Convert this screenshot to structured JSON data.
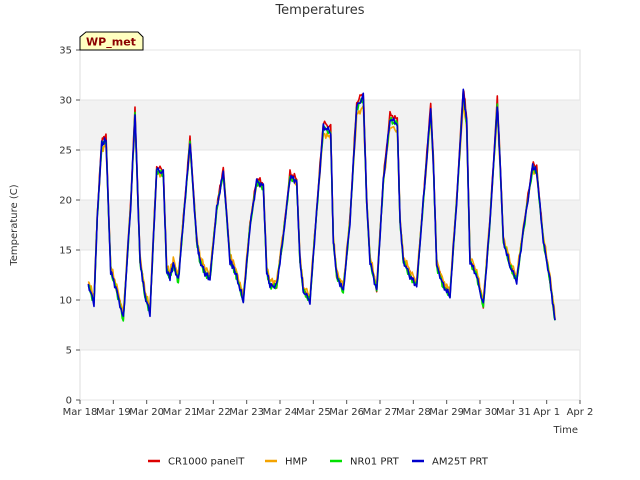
{
  "chart_data": {
    "type": "line",
    "title": "Temperatures",
    "xlabel": "Time",
    "ylabel": "Temperature (C)",
    "ylim": [
      0,
      35
    ],
    "yticks": [
      0,
      5,
      10,
      15,
      20,
      25,
      30,
      35
    ],
    "xlim": [
      0,
      15
    ],
    "xticks": [
      {
        "value": 0,
        "label": "Mar 18"
      },
      {
        "value": 1,
        "label": "Mar 19"
      },
      {
        "value": 2,
        "label": "Mar 20"
      },
      {
        "value": 3,
        "label": "Mar 21"
      },
      {
        "value": 4,
        "label": "Mar 22"
      },
      {
        "value": 5,
        "label": "Mar 23"
      },
      {
        "value": 6,
        "label": "Mar 24"
      },
      {
        "value": 7,
        "label": "Mar 25"
      },
      {
        "value": 8,
        "label": "Mar 26"
      },
      {
        "value": 9,
        "label": "Mar 27"
      },
      {
        "value": 10,
        "label": "Mar 28"
      },
      {
        "value": 11,
        "label": "Mar 29"
      },
      {
        "value": 12,
        "label": "Mar 30"
      },
      {
        "value": 13,
        "label": "Mar 31"
      },
      {
        "value": 14,
        "label": "Apr 1"
      },
      {
        "value": 15,
        "label": "Apr 2"
      }
    ],
    "badge": "WP_met",
    "grid": "horizontal bands",
    "legend_position": "bottom",
    "base_profile": {
      "x": [
        0.25,
        0.42,
        0.52,
        0.65,
        0.78,
        0.92,
        1.1,
        1.3,
        1.52,
        1.65,
        1.8,
        1.95,
        2.1,
        2.3,
        2.5,
        2.6,
        2.7,
        2.8,
        2.95,
        3.1,
        3.3,
        3.5,
        3.6,
        3.75,
        3.9,
        4.1,
        4.3,
        4.5,
        4.6,
        4.7,
        4.9,
        5.1,
        5.3,
        5.5,
        5.6,
        5.7,
        5.9,
        6.1,
        6.3,
        6.5,
        6.6,
        6.7,
        6.9,
        7.1,
        7.3,
        7.52,
        7.6,
        7.7,
        7.9,
        8.1,
        8.3,
        8.5,
        8.6,
        8.7,
        8.9,
        9.1,
        9.3,
        9.52,
        9.6,
        9.7,
        9.9,
        10.1,
        10.3,
        10.52,
        10.6,
        10.7,
        10.9,
        11.1,
        11.3,
        11.5,
        11.6,
        11.7,
        11.9,
        12.1,
        12.3,
        12.52,
        12.6,
        12.7,
        12.9,
        13.1,
        13.3,
        13.58,
        13.7,
        13.9,
        14.1,
        14.25
      ],
      "y": [
        11.6,
        9.8,
        18.5,
        25.7,
        26.2,
        13.0,
        11.0,
        8.2,
        19.5,
        28.9,
        14.0,
        10.5,
        8.8,
        23.2,
        22.8,
        13.0,
        12.4,
        13.7,
        12.0,
        18.0,
        26.0,
        16.0,
        14.0,
        12.8,
        12.2,
        19.2,
        23.0,
        14.0,
        13.4,
        12.4,
        10.0,
        17.5,
        22.0,
        21.5,
        13.0,
        11.5,
        11.5,
        16.5,
        22.5,
        22.0,
        14.0,
        11.0,
        10.0,
        19.0,
        27.5,
        27.0,
        16.0,
        12.5,
        11.0,
        18.0,
        29.5,
        30.5,
        20.0,
        14.0,
        11.0,
        22.0,
        28.3,
        27.8,
        18.0,
        14.0,
        12.5,
        11.5,
        20.0,
        29.3,
        24.0,
        13.5,
        11.5,
        10.5,
        20.0,
        31.0,
        28.0,
        14.0,
        12.5,
        9.5,
        18.0,
        29.8,
        24.0,
        16.0,
        13.5,
        12.0,
        17.0,
        23.5,
        23.0,
        16.0,
        12.0,
        8.0
      ]
    },
    "series": [
      {
        "name": "CR1000 panelT",
        "color": "#dd0000",
        "peak_factor": 1.015,
        "offset": 0.05
      },
      {
        "name": "HMP",
        "color": "#f4a300",
        "peak_factor": 0.9,
        "offset": 0.4
      },
      {
        "name": "NR01 PRT",
        "color": "#00e000",
        "peak_factor": 0.99,
        "offset": -0.15
      },
      {
        "name": "AM25T PRT",
        "color": "#0000cc",
        "peak_factor": 0.995,
        "offset": -0.1
      }
    ]
  }
}
